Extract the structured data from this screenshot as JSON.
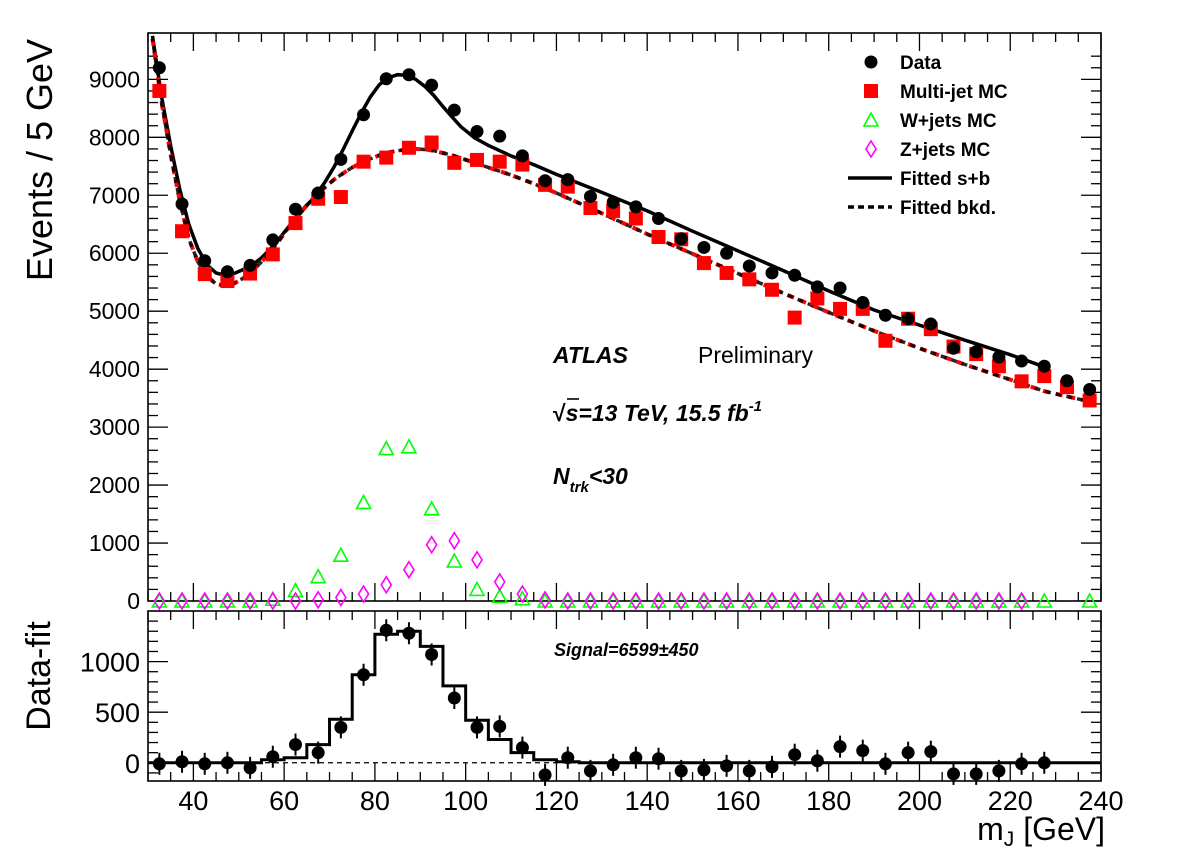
{
  "chart_data": [
    {
      "type": "scatter",
      "title": "",
      "xlabel": "",
      "ylabel": "Events / 5 GeV",
      "xlim": [
        30,
        240
      ],
      "ylim": [
        0,
        9800
      ],
      "yticks": [
        0,
        1000,
        2000,
        3000,
        4000,
        5000,
        6000,
        7000,
        8000,
        9000
      ],
      "legend_position": "top-right",
      "colors": {
        "data": "#000000",
        "multijet": "#ff0000",
        "wjets": "#00ff00",
        "zjets": "#ff00ff"
      },
      "annotations": {
        "experiment": "ATLAS",
        "status": "Preliminary",
        "energy_sqrt": "√",
        "energy_s": "s",
        "energy_text": "=13 TeV, 15.5 fb",
        "energy_sup": "-1",
        "ntrk_N": "N",
        "ntrk_sub": "trk",
        "ntrk_cut": "<30"
      },
      "series": [
        {
          "name": "Data",
          "marker": "circle",
          "x": [
            32.5,
            37.5,
            42.5,
            47.5,
            52.5,
            57.5,
            62.5,
            67.5,
            72.5,
            77.5,
            82.5,
            87.5,
            92.5,
            97.5,
            102.5,
            107.5,
            112.5,
            117.5,
            122.5,
            127.5,
            132.5,
            137.5,
            142.5,
            147.5,
            152.5,
            157.5,
            162.5,
            167.5,
            172.5,
            177.5,
            182.5,
            187.5,
            192.5,
            197.5,
            202.5,
            207.5,
            212.5,
            217.5,
            222.5,
            227.5,
            232.5,
            237.5
          ],
          "y": [
            9200,
            6850,
            5870,
            5680,
            5790,
            6230,
            6760,
            7040,
            7620,
            8390,
            9010,
            9080,
            8900,
            8470,
            8100,
            8020,
            7680,
            7250,
            7270,
            6980,
            6880,
            6800,
            6600,
            6250,
            6100,
            6000,
            5780,
            5660,
            5620,
            5420,
            5400,
            5150,
            4930,
            4870,
            4780,
            4360,
            4300,
            4210,
            4140,
            4050,
            3800,
            3650
          ]
        },
        {
          "name": "Multi-jet MC",
          "marker": "square",
          "x": [
            32.5,
            37.5,
            42.5,
            47.5,
            52.5,
            57.5,
            62.5,
            67.5,
            72.5,
            77.5,
            82.5,
            87.5,
            92.5,
            97.5,
            102.5,
            107.5,
            112.5,
            117.5,
            122.5,
            127.5,
            132.5,
            137.5,
            142.5,
            147.5,
            152.5,
            157.5,
            162.5,
            167.5,
            172.5,
            177.5,
            182.5,
            187.5,
            192.5,
            197.5,
            202.5,
            207.5,
            212.5,
            217.5,
            222.5,
            227.5,
            232.5,
            237.5
          ],
          "y": [
            8800,
            6380,
            5640,
            5520,
            5650,
            5980,
            6520,
            6940,
            6970,
            7580,
            7650,
            7820,
            7910,
            7560,
            7610,
            7580,
            7530,
            7180,
            7150,
            6780,
            6730,
            6600,
            6280,
            6240,
            5830,
            5660,
            5550,
            5370,
            4890,
            5220,
            5040,
            5040,
            4490,
            4870,
            4690,
            4390,
            4260,
            4050,
            3790,
            3880,
            3690,
            3460
          ]
        },
        {
          "name": "W+jets MC",
          "marker": "triangle",
          "x": [
            32.5,
            37.5,
            42.5,
            47.5,
            52.5,
            57.5,
            62.5,
            67.5,
            72.5,
            77.5,
            82.5,
            87.5,
            92.5,
            97.5,
            102.5,
            107.5,
            112.5,
            117.5,
            122.5,
            127.5,
            132.5,
            137.5,
            142.5,
            147.5,
            152.5,
            157.5,
            162.5,
            167.5,
            172.5,
            177.5,
            182.5,
            187.5,
            192.5,
            197.5,
            202.5,
            207.5,
            212.5,
            217.5,
            222.5,
            227.5,
            237.5
          ],
          "y": [
            0,
            0,
            0,
            0,
            0,
            30,
            180,
            420,
            790,
            1700,
            2630,
            2660,
            1590,
            690,
            200,
            80,
            40,
            0,
            0,
            0,
            0,
            0,
            0,
            0,
            0,
            0,
            0,
            0,
            0,
            0,
            0,
            0,
            0,
            0,
            0,
            0,
            0,
            0,
            0,
            0,
            0
          ]
        },
        {
          "name": "Z+jets MC",
          "marker": "diamond",
          "x": [
            32.5,
            37.5,
            42.5,
            47.5,
            52.5,
            57.5,
            62.5,
            67.5,
            72.5,
            77.5,
            82.5,
            87.5,
            92.5,
            97.5,
            102.5,
            107.5,
            112.5,
            117.5,
            122.5,
            127.5,
            132.5,
            137.5,
            142.5,
            147.5,
            152.5,
            157.5,
            162.5,
            167.5,
            172.5,
            177.5,
            182.5,
            187.5,
            192.5,
            197.5,
            202.5,
            207.5,
            212.5,
            217.5,
            222.5
          ],
          "y": [
            0,
            0,
            0,
            0,
            0,
            0,
            0,
            20,
            60,
            120,
            280,
            540,
            970,
            1040,
            710,
            330,
            120,
            20,
            0,
            0,
            0,
            0,
            0,
            0,
            0,
            0,
            0,
            0,
            0,
            0,
            0,
            0,
            0,
            0,
            0,
            0,
            0,
            0,
            0
          ]
        },
        {
          "name": "Fitted s+b",
          "line": "solid",
          "x": [
            31,
            33,
            35,
            37,
            39,
            41,
            43,
            45,
            47,
            49,
            51,
            53,
            55,
            57,
            59,
            61,
            63,
            65,
            67,
            69,
            71,
            73,
            75,
            77,
            79,
            81,
            83,
            85,
            87,
            89,
            91,
            93,
            95,
            97,
            99,
            102,
            105,
            110,
            115,
            120,
            130,
            140,
            150,
            160,
            170,
            180,
            190,
            200,
            210,
            220,
            227.5
          ],
          "y": [
            9750,
            8700,
            7850,
            7100,
            6500,
            6080,
            5800,
            5660,
            5620,
            5650,
            5720,
            5800,
            5920,
            6080,
            6260,
            6460,
            6640,
            6820,
            7000,
            7230,
            7490,
            7790,
            8110,
            8420,
            8700,
            8910,
            9030,
            9080,
            9070,
            9000,
            8880,
            8720,
            8530,
            8350,
            8180,
            7990,
            7860,
            7680,
            7530,
            7360,
            7050,
            6730,
            6380,
            6040,
            5700,
            5350,
            5020,
            4760,
            4500,
            4250,
            4040
          ]
        },
        {
          "name": "Fitted bkd.",
          "line": "dashed",
          "x": [
            31,
            33,
            35,
            37,
            39,
            41,
            43,
            45,
            47,
            49,
            51,
            53,
            55,
            57,
            59,
            61,
            63,
            65,
            67,
            69,
            71,
            73,
            75,
            77,
            79,
            81,
            83,
            85,
            87,
            89,
            91,
            93,
            95,
            97,
            99,
            102,
            105,
            110,
            115,
            120,
            130,
            140,
            150,
            160,
            170,
            180,
            190,
            200,
            210,
            220,
            227.5,
            237.5
          ],
          "y": [
            9700,
            8600,
            7700,
            6900,
            6250,
            5850,
            5600,
            5470,
            5440,
            5480,
            5570,
            5700,
            5850,
            6030,
            6230,
            6450,
            6650,
            6830,
            6990,
            7140,
            7270,
            7380,
            7480,
            7560,
            7630,
            7690,
            7740,
            7770,
            7790,
            7800,
            7790,
            7770,
            7730,
            7690,
            7640,
            7560,
            7480,
            7350,
            7200,
            7040,
            6690,
            6330,
            5990,
            5650,
            5310,
            4980,
            4660,
            4360,
            4080,
            3820,
            3620,
            3440
          ]
        }
      ]
    },
    {
      "type": "scatter",
      "title": "",
      "xlabel": "m_J [GeV]",
      "xlabel_main": "m",
      "xlabel_sub": "J",
      "xlabel_unit": " [GeV]",
      "ylabel": "Data-fit",
      "xlim": [
        30,
        240
      ],
      "ylim": [
        -180,
        1500
      ],
      "xticks": [
        40,
        60,
        80,
        100,
        120,
        140,
        160,
        180,
        200,
        220,
        240
      ],
      "yticks": [
        0,
        500,
        1000
      ],
      "annotation": "Signal=6599±450",
      "series": [
        {
          "name": "Data-fit",
          "marker": "circle",
          "x": [
            32.5,
            37.5,
            42.5,
            47.5,
            52.5,
            57.5,
            62.5,
            67.5,
            72.5,
            77.5,
            82.5,
            87.5,
            92.5,
            97.5,
            102.5,
            107.5,
            112.5,
            117.5,
            122.5,
            127.5,
            132.5,
            137.5,
            142.5,
            147.5,
            152.5,
            157.5,
            162.5,
            167.5,
            172.5,
            177.5,
            182.5,
            187.5,
            192.5,
            197.5,
            202.5,
            207.5,
            212.5,
            217.5,
            222.5,
            227.5
          ],
          "y": [
            -10,
            10,
            -10,
            0,
            -50,
            60,
            180,
            100,
            350,
            870,
            1310,
            1280,
            1070,
            640,
            350,
            360,
            150,
            -120,
            50,
            -80,
            -20,
            50,
            40,
            -80,
            -70,
            -30,
            -80,
            -40,
            80,
            20,
            160,
            120,
            -10,
            100,
            110,
            -110,
            -110,
            -80,
            -10,
            0
          ]
        },
        {
          "name": "Signal fit",
          "line": "step",
          "x": [
            30,
            55,
            60,
            65,
            70,
            75,
            80,
            85,
            90,
            95,
            100,
            105,
            110,
            115,
            120,
            125,
            240
          ],
          "y": [
            0,
            30,
            50,
            180,
            430,
            870,
            1270,
            1300,
            1150,
            760,
            420,
            230,
            100,
            30,
            10,
            0,
            0
          ]
        }
      ]
    }
  ]
}
